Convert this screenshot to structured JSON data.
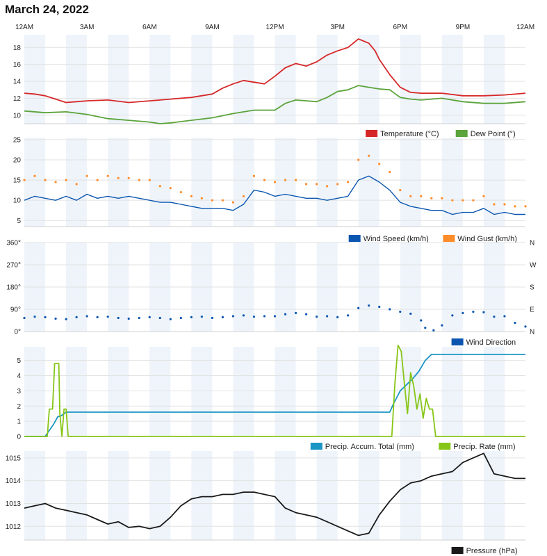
{
  "page": {
    "title": "March 24, 2022"
  },
  "time_axis": {
    "labels": [
      "12AM",
      "3AM",
      "6AM",
      "9AM",
      "12PM",
      "3PM",
      "6PM",
      "9PM",
      "12AM"
    ],
    "range_hours": [
      0,
      24
    ]
  },
  "colors": {
    "temperature": "#d62728",
    "dew_point": "#5ba33b",
    "wind_speed": "#0b56b0",
    "wind_gust": "#ff8c2a",
    "wind_direction": "#0b56b0",
    "precip_total": "#1b95c4",
    "precip_rate": "#86c616",
    "pressure": "#1a1a1a",
    "band": "#eef4fa"
  },
  "chart_data": [
    {
      "type": "line",
      "id": "temperature",
      "ylim": [
        9,
        19.5
      ],
      "yticks": [
        "10",
        "12",
        "14",
        "16",
        "18"
      ],
      "ytick_values": [
        10,
        12,
        14,
        16,
        18
      ],
      "series": [
        {
          "name": "Temperature (°C)",
          "x": [
            0,
            0.5,
            1,
            1.5,
            2,
            2.5,
            3,
            4,
            5,
            6,
            7,
            8,
            9,
            9.5,
            10,
            10.5,
            11,
            11.5,
            12,
            12.5,
            13,
            13.5,
            14,
            14.5,
            15,
            15.5,
            16,
            16.2,
            16.5,
            16.8,
            17,
            17.5,
            18,
            18.5,
            19,
            20,
            21,
            22,
            23,
            24
          ],
          "y": [
            12.6,
            12.5,
            12.3,
            11.9,
            11.5,
            11.6,
            11.7,
            11.8,
            11.5,
            11.7,
            11.9,
            12.1,
            12.5,
            13.2,
            13.7,
            14.1,
            13.9,
            13.7,
            14.6,
            15.6,
            16.1,
            15.8,
            16.3,
            17.1,
            17.6,
            18.0,
            19.0,
            18.8,
            18.5,
            17.6,
            16.6,
            14.8,
            13.3,
            12.7,
            12.6,
            12.6,
            12.3,
            12.3,
            12.4,
            12.6
          ]
        },
        {
          "name": "Dew Point (°)",
          "x": [
            0,
            1,
            2,
            3,
            4,
            5,
            6,
            6.5,
            7,
            8,
            9,
            10,
            11,
            12,
            12.5,
            13,
            14,
            14.5,
            15,
            15.5,
            16,
            16.5,
            17,
            17.5,
            18,
            18.5,
            19,
            20,
            21,
            22,
            23,
            24
          ],
          "y": [
            10.5,
            10.3,
            10.4,
            10.1,
            9.6,
            9.4,
            9.2,
            9.0,
            9.1,
            9.4,
            9.7,
            10.2,
            10.6,
            10.6,
            11.4,
            11.8,
            11.6,
            12.1,
            12.8,
            13.0,
            13.5,
            13.3,
            13.1,
            13.0,
            12.1,
            11.9,
            11.8,
            12.0,
            11.6,
            11.4,
            11.4,
            11.6
          ]
        }
      ],
      "legend": [
        "Temperature (°C)",
        "Dew Point (°)"
      ]
    },
    {
      "type": "line",
      "id": "wind",
      "ylim": [
        3.5,
        25.5
      ],
      "yticks": [
        "5",
        "10",
        "15",
        "20",
        "25"
      ],
      "ytick_values": [
        5,
        10,
        15,
        20,
        25
      ],
      "series": [
        {
          "name": "Wind Speed (km/h)",
          "x": [
            0,
            0.5,
            1,
            1.5,
            2,
            2.5,
            3,
            3.5,
            4,
            4.5,
            5,
            5.5,
            6,
            6.5,
            7,
            7.5,
            8,
            8.5,
            9,
            9.5,
            10,
            10.5,
            11,
            11.5,
            12,
            12.5,
            13,
            13.5,
            14,
            14.5,
            15,
            15.5,
            16,
            16.5,
            17,
            17.5,
            18,
            18.5,
            19,
            19.5,
            20,
            20.5,
            21,
            21.5,
            22,
            22.5,
            23,
            23.5,
            24
          ],
          "y": [
            10,
            11,
            10.5,
            10,
            11,
            10,
            11.5,
            10.5,
            11,
            10.5,
            11,
            10.5,
            10,
            9.5,
            9.5,
            9,
            8.5,
            8,
            8,
            8,
            7.5,
            9,
            12.5,
            12,
            11,
            11.5,
            11,
            10.5,
            10.5,
            10,
            10.5,
            11,
            15,
            16,
            14.5,
            12.5,
            9.5,
            8.5,
            8,
            7.5,
            7.5,
            6.5,
            7,
            7,
            8,
            6.5,
            7,
            6.5,
            6.5
          ]
        },
        {
          "name": "Wind Gust (km/h)",
          "x": [
            0,
            0.5,
            1,
            1.5,
            2,
            2.5,
            3,
            3.5,
            4,
            4.5,
            5,
            5.5,
            6,
            6.5,
            7,
            7.5,
            8,
            8.5,
            9,
            9.5,
            10,
            10.5,
            11,
            11.5,
            12,
            12.5,
            13,
            13.5,
            14,
            14.5,
            15,
            15.5,
            16,
            16.5,
            17,
            17.5,
            18,
            18.5,
            19,
            19.5,
            20,
            20.5,
            21,
            21.5,
            22,
            22.5,
            23,
            23.5,
            24
          ],
          "y": [
            15,
            16,
            15,
            14.5,
            15,
            14,
            16,
            15,
            16,
            15.5,
            15.5,
            15,
            15,
            13.5,
            13,
            12,
            11,
            10.5,
            10,
            10,
            9.5,
            11,
            16,
            15,
            14.5,
            15,
            15,
            14,
            14,
            13.5,
            14,
            14.5,
            20,
            21,
            19,
            17,
            12.5,
            11,
            11,
            10.5,
            10.5,
            10,
            10,
            10,
            11,
            9,
            9,
            8.5,
            8.5
          ]
        }
      ],
      "legend": [
        "Wind Speed (km/h)",
        "Wind Gust (km/h)"
      ]
    },
    {
      "type": "scatter",
      "id": "wind_direction",
      "ylim": [
        0,
        360
      ],
      "yticks": [
        "0°",
        "90°",
        "180°",
        "270°",
        "360°"
      ],
      "ytick_values": [
        0,
        90,
        180,
        270,
        360
      ],
      "right_ticks": [
        "N",
        "E",
        "S",
        "W",
        "N"
      ],
      "series": [
        {
          "name": "Wind Direction",
          "x": [
            0,
            0.5,
            1,
            1.5,
            2,
            2.5,
            3,
            3.5,
            4,
            4.5,
            5,
            5.5,
            6,
            6.5,
            7,
            7.5,
            8,
            8.5,
            9,
            9.5,
            10,
            10.5,
            11,
            11.5,
            12,
            12.5,
            13,
            13.5,
            14,
            14.5,
            15,
            15.5,
            16,
            16.5,
            17,
            17.5,
            18,
            18.5,
            19,
            19.2,
            19.6,
            20,
            20.5,
            21,
            21.5,
            22,
            22.5,
            23,
            23.5,
            24
          ],
          "y": [
            55,
            60,
            58,
            52,
            50,
            58,
            62,
            58,
            60,
            55,
            52,
            55,
            58,
            55,
            50,
            55,
            58,
            60,
            55,
            58,
            62,
            65,
            60,
            62,
            62,
            70,
            75,
            70,
            60,
            62,
            58,
            65,
            95,
            105,
            100,
            90,
            80,
            72,
            45,
            15,
            5,
            25,
            65,
            75,
            80,
            78,
            60,
            62,
            35,
            20
          ]
        }
      ],
      "legend": [
        "Wind Direction"
      ]
    },
    {
      "type": "line",
      "id": "precipitation",
      "ylim": [
        0,
        5.9
      ],
      "yticks": [
        "0",
        "1",
        "2",
        "3",
        "4",
        "5"
      ],
      "ytick_values": [
        0,
        1,
        2,
        3,
        4,
        5
      ],
      "series": [
        {
          "name": "Precip. Accum. Total (mm)",
          "x": [
            0,
            1.0,
            1.15,
            1.4,
            1.6,
            1.75,
            1.85,
            2.0,
            2.2,
            17.5,
            17.7,
            18.0,
            18.3,
            18.6,
            18.9,
            19.2,
            19.5,
            20,
            24
          ],
          "y": [
            0,
            0,
            0.3,
            0.8,
            1.3,
            1.35,
            1.45,
            1.6,
            1.6,
            1.6,
            2.2,
            3.0,
            3.4,
            3.8,
            4.3,
            5.0,
            5.4,
            5.4,
            5.4
          ]
        },
        {
          "name": "Precip. Rate (mm)",
          "x": [
            0,
            1.1,
            1.2,
            1.35,
            1.45,
            1.55,
            1.65,
            1.7,
            1.8,
            1.9,
            2.0,
            2.1,
            2.2,
            17.6,
            17.75,
            17.9,
            18.05,
            18.2,
            18.35,
            18.5,
            18.65,
            18.8,
            18.95,
            19.1,
            19.25,
            19.4,
            19.55,
            19.7,
            19.85,
            20,
            24
          ],
          "y": [
            0,
            0,
            1.8,
            1.8,
            4.8,
            4.8,
            4.8,
            1.5,
            0,
            1.8,
            1.8,
            0,
            0,
            0,
            3.5,
            6.0,
            5.6,
            3.5,
            1.5,
            4.2,
            3.3,
            1.8,
            2.8,
            1.2,
            2.5,
            1.8,
            1.8,
            0,
            0,
            0,
            0
          ]
        }
      ],
      "legend": [
        "Precip. Accum. Total (mm)",
        "Precip. Rate (mm)"
      ]
    },
    {
      "type": "line",
      "id": "pressure",
      "ylim": [
        1011.4,
        1015.3
      ],
      "yticks": [
        "1012",
        "1013",
        "1014",
        "1015"
      ],
      "ytick_values": [
        1012,
        1013,
        1014,
        1015
      ],
      "series": [
        {
          "name": "Pressure (hPa)",
          "x": [
            0,
            0.5,
            1,
            1.5,
            2,
            2.5,
            3,
            3.5,
            4,
            4.5,
            5,
            5.5,
            6,
            6.5,
            7,
            7.5,
            8,
            8.5,
            9,
            9.5,
            10,
            10.5,
            11,
            11.5,
            12,
            12.5,
            13,
            13.5,
            14,
            14.5,
            15,
            15.5,
            16,
            16.5,
            17,
            17.5,
            18,
            18.5,
            19,
            19.5,
            20,
            20.5,
            21,
            21.5,
            22,
            22.5,
            23,
            23.5,
            24
          ],
          "y": [
            1012.8,
            1012.9,
            1013.0,
            1012.8,
            1012.7,
            1012.6,
            1012.5,
            1012.3,
            1012.1,
            1012.2,
            1011.95,
            1012.0,
            1011.9,
            1012.0,
            1012.4,
            1012.9,
            1013.2,
            1013.3,
            1013.3,
            1013.4,
            1013.4,
            1013.5,
            1013.5,
            1013.4,
            1013.3,
            1012.8,
            1012.6,
            1012.5,
            1012.4,
            1012.2,
            1012.0,
            1011.8,
            1011.6,
            1011.7,
            1012.5,
            1013.1,
            1013.6,
            1013.9,
            1014.0,
            1014.2,
            1014.3,
            1014.4,
            1014.8,
            1015.0,
            1015.2,
            1014.3,
            1014.2,
            1014.1,
            1014.1
          ]
        }
      ],
      "legend": [
        "Pressure (hPa)"
      ]
    }
  ]
}
